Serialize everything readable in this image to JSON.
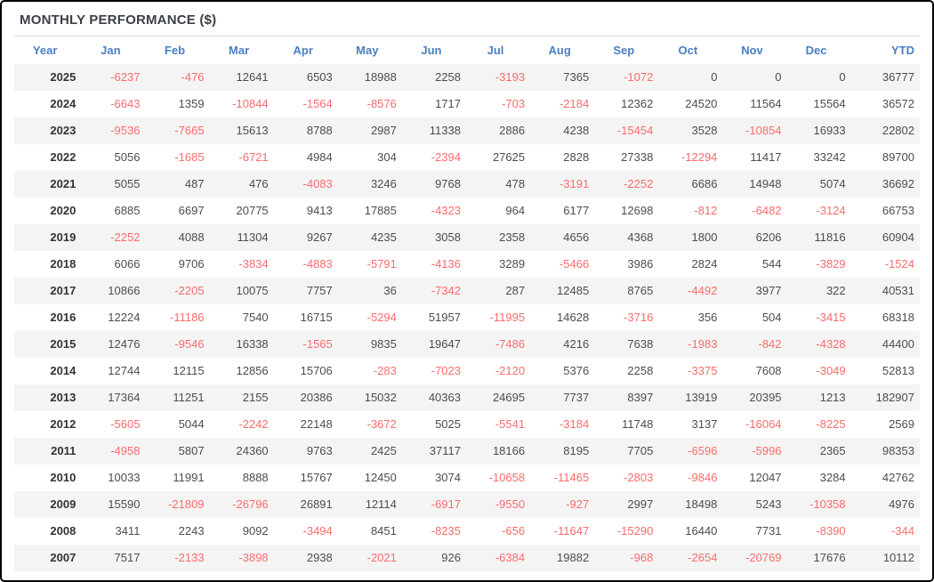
{
  "title": "MONTHLY PERFORMANCE ($)",
  "colors": {
    "header_blue": "#4a7fc0",
    "negative_red": "#fb6c6b",
    "positive_gray": "#4d4d50",
    "year_color": "#333333",
    "title_color": "#3b4045",
    "stripe": "#f4f4f4",
    "divider": "#d9d9d9",
    "frame": "#000000"
  },
  "chart_data": {
    "type": "table",
    "title": "MONTHLY PERFORMANCE ($)",
    "columns": [
      "Year",
      "Jan",
      "Feb",
      "Mar",
      "Apr",
      "May",
      "Jun",
      "Jul",
      "Aug",
      "Sep",
      "Oct",
      "Nov",
      "Dec",
      "YTD"
    ],
    "rows": [
      {
        "year": "2025",
        "values": [
          -6237,
          -476,
          12641,
          6503,
          18988,
          2258,
          -3193,
          7365,
          -1072,
          0,
          0,
          0,
          36777
        ]
      },
      {
        "year": "2024",
        "values": [
          -6643,
          1359,
          -10844,
          -1564,
          -8576,
          1717,
          -703,
          -2184,
          12362,
          24520,
          11564,
          15564,
          36572
        ]
      },
      {
        "year": "2023",
        "values": [
          -9536,
          -7665,
          15613,
          8788,
          2987,
          11338,
          2886,
          4238,
          -15454,
          3528,
          -10854,
          16933,
          22802
        ]
      },
      {
        "year": "2022",
        "values": [
          5056,
          -1685,
          -6721,
          4984,
          304,
          -2394,
          27625,
          2828,
          27338,
          -12294,
          11417,
          33242,
          89700
        ]
      },
      {
        "year": "2021",
        "values": [
          5055,
          487,
          476,
          -4083,
          3246,
          9768,
          478,
          -3191,
          -2252,
          6686,
          14948,
          5074,
          36692
        ]
      },
      {
        "year": "2020",
        "values": [
          6885,
          6697,
          20775,
          9413,
          17885,
          -4323,
          964,
          6177,
          12698,
          -812,
          -6482,
          -3124,
          66753
        ]
      },
      {
        "year": "2019",
        "values": [
          -2252,
          4088,
          11304,
          9267,
          4235,
          3058,
          2358,
          4656,
          4368,
          1800,
          6206,
          11816,
          60904
        ]
      },
      {
        "year": "2018",
        "values": [
          6066,
          9706,
          -3834,
          -4883,
          -5791,
          -4136,
          3289,
          -5466,
          3986,
          2824,
          544,
          -3829,
          -1524
        ]
      },
      {
        "year": "2017",
        "values": [
          10866,
          -2205,
          10075,
          7757,
          36,
          -7342,
          287,
          12485,
          8765,
          -4492,
          3977,
          322,
          40531
        ]
      },
      {
        "year": "2016",
        "values": [
          12224,
          -11186,
          7540,
          16715,
          -5294,
          51957,
          -11995,
          14628,
          -3716,
          356,
          504,
          -3415,
          68318
        ]
      },
      {
        "year": "2015",
        "values": [
          12476,
          -9546,
          16338,
          -1565,
          9835,
          19647,
          -7486,
          4216,
          7638,
          -1983,
          -842,
          -4328,
          44400
        ]
      },
      {
        "year": "2014",
        "values": [
          12744,
          12115,
          12856,
          15706,
          -283,
          -7023,
          -2120,
          5376,
          2258,
          -3375,
          7608,
          -3049,
          52813
        ]
      },
      {
        "year": "2013",
        "values": [
          17364,
          11251,
          2155,
          20386,
          15032,
          40363,
          24695,
          7737,
          8397,
          13919,
          20395,
          1213,
          182907
        ]
      },
      {
        "year": "2012",
        "values": [
          -5605,
          5044,
          -2242,
          22148,
          -3672,
          5025,
          -5541,
          -3184,
          11748,
          3137,
          -16064,
          -8225,
          2569
        ]
      },
      {
        "year": "2011",
        "values": [
          -4958,
          5807,
          24360,
          9763,
          2425,
          37117,
          18166,
          8195,
          7705,
          -6596,
          -5996,
          2365,
          98353
        ]
      },
      {
        "year": "2010",
        "values": [
          10033,
          11991,
          8888,
          15767,
          12450,
          3074,
          -10658,
          -11465,
          -2803,
          -9846,
          12047,
          3284,
          42762
        ]
      },
      {
        "year": "2009",
        "values": [
          15590,
          -21809,
          -26796,
          26891,
          12114,
          -6917,
          -9550,
          -927,
          2997,
          18498,
          5243,
          -10358,
          4976
        ]
      },
      {
        "year": "2008",
        "values": [
          3411,
          2243,
          9092,
          -3494,
          8451,
          -8235,
          -656,
          -11647,
          -15290,
          16440,
          7731,
          -8390,
          -344
        ]
      },
      {
        "year": "2007",
        "values": [
          7517,
          -2133,
          -3898,
          2938,
          -2021,
          926,
          -6384,
          19882,
          -968,
          -2654,
          -20769,
          17676,
          10112
        ]
      }
    ]
  }
}
